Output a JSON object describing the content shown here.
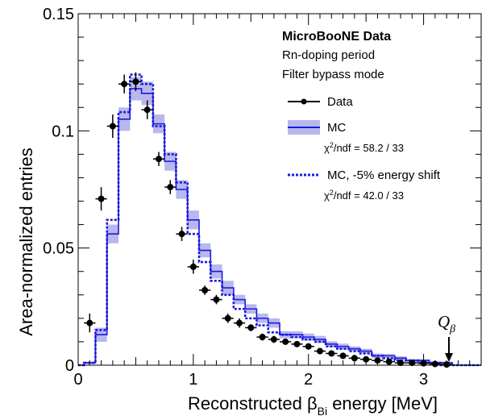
{
  "chart_data": {
    "type": "histogram",
    "title": "",
    "xlabel": "Reconstructed β",
    "xlabel_sub": "Bi",
    "xlabel_suffix": " energy [MeV]",
    "ylabel": "Area-normalized entries",
    "xlim": [
      0,
      3.5
    ],
    "ylim": [
      0,
      0.15
    ],
    "x_ticks": [
      0,
      1,
      2,
      3
    ],
    "x_tick_labels": [
      "0",
      "1",
      "2",
      "3"
    ],
    "y_ticks": [
      0,
      0.05,
      0.1,
      0.15
    ],
    "y_tick_labels": [
      "0",
      "0.05",
      "0.1",
      "0.15"
    ],
    "bin_width": 0.1,
    "bin_edges_start": 0.05,
    "legend": {
      "placement": "top-right",
      "header_bold": "MicroBooNE Data",
      "header_line2": "Rn-doping period",
      "header_line3": "Filter bypass mode",
      "data_label": "Data",
      "mc_label": "MC",
      "mc_chi2_prefix": "χ",
      "mc_chi2_sup": "2",
      "mc_chi2_text": "/ndf = 58.2 / 33",
      "shift_label": "MC, -5% energy shift",
      "shift_chi2_prefix": "χ",
      "shift_chi2_sup": "2",
      "shift_chi2_text": "/ndf = 42.0 / 33"
    },
    "annotation": {
      "label": "Q",
      "sub": "β",
      "x": 3.22
    },
    "colors": {
      "mc_line": "#1a1adb",
      "mc_band": "#b8b8ef",
      "shift_line": "#1a1adb",
      "data": "#000000"
    },
    "series": [
      {
        "name": "Data",
        "x": [
          0.1,
          0.2,
          0.3,
          0.4,
          0.5,
          0.6,
          0.7,
          0.8,
          0.9,
          1.0,
          1.1,
          1.2,
          1.3,
          1.4,
          1.5,
          1.6,
          1.7,
          1.8,
          1.9,
          2.0,
          2.1,
          2.2,
          2.3,
          2.4,
          2.5,
          2.6,
          2.7,
          2.8,
          2.9,
          3.0,
          3.1,
          3.2
        ],
        "values": [
          0.018,
          0.071,
          0.102,
          0.12,
          0.121,
          0.109,
          0.088,
          0.076,
          0.056,
          0.042,
          0.032,
          0.028,
          0.02,
          0.018,
          0.016,
          0.012,
          0.011,
          0.01,
          0.009,
          0.008,
          0.006,
          0.005,
          0.004,
          0.003,
          0.0025,
          0.002,
          0.0015,
          0.001,
          0.001,
          0.0008,
          0.0005,
          0.0003
        ],
        "errors": [
          0.004,
          0.005,
          0.005,
          0.004,
          0.004,
          0.004,
          0.003,
          0.003,
          0.003,
          0.003,
          0.002,
          0.002,
          0.002,
          0.002,
          0.0015,
          0.0015,
          0.0015,
          0.0012,
          0.0012,
          0.001,
          0.001,
          0.001,
          0.001,
          0.0008,
          0.0008,
          0.0008,
          0.0006,
          0.0006,
          0.0005,
          0.0005,
          0.0004,
          0.0004
        ]
      },
      {
        "name": "MC",
        "values": [
          0.001,
          0.013,
          0.056,
          0.105,
          0.118,
          0.116,
          0.103,
          0.087,
          0.075,
          0.062,
          0.049,
          0.04,
          0.033,
          0.028,
          0.024,
          0.02,
          0.018,
          0.013,
          0.013,
          0.012,
          0.011,
          0.009,
          0.008,
          0.007,
          0.006,
          0.004,
          0.004,
          0.003,
          0.002,
          0.002,
          0.001,
          0.001,
          0.0,
          0.0
        ],
        "band": [
          0.0005,
          0.003,
          0.004,
          0.005,
          0.005,
          0.005,
          0.004,
          0.004,
          0.004,
          0.004,
          0.003,
          0.003,
          0.003,
          0.002,
          0.002,
          0.002,
          0.002,
          0.0015,
          0.0015,
          0.0015,
          0.0015,
          0.0012,
          0.0012,
          0.001,
          0.001,
          0.001,
          0.0008,
          0.0008,
          0.0006,
          0.0006,
          0.0005,
          0.0005,
          0.0,
          0.0
        ]
      },
      {
        "name": "MC, -5% energy shift",
        "values": [
          0.001,
          0.015,
          0.062,
          0.108,
          0.124,
          0.12,
          0.102,
          0.09,
          0.078,
          0.056,
          0.044,
          0.036,
          0.03,
          0.024,
          0.02,
          0.017,
          0.014,
          0.013,
          0.012,
          0.011,
          0.01,
          0.008,
          0.007,
          0.006,
          0.005,
          0.004,
          0.003,
          0.002,
          0.002,
          0.001,
          0.001,
          0.0,
          0.0,
          0.0
        ]
      }
    ]
  }
}
